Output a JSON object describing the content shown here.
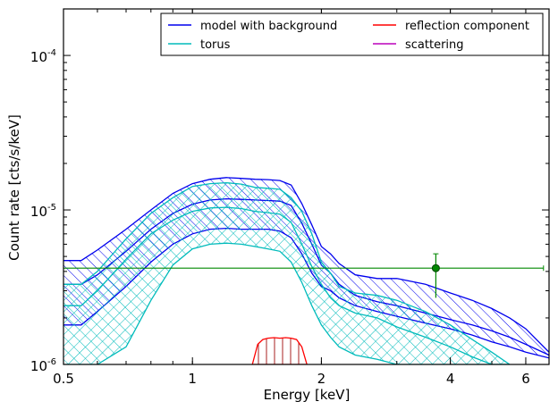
{
  "chart_data": {
    "type": "line",
    "xlabel": "Energy [keV]",
    "ylabel": "Count rate [cts/s/keV]",
    "xscale": "log",
    "yscale": "log",
    "xlim": [
      0.5,
      6.8
    ],
    "ylim": [
      1e-06,
      0.0002
    ],
    "x_ticks": [
      {
        "value": 0.5,
        "label": "0.5"
      },
      {
        "value": 1,
        "label": "1"
      },
      {
        "value": 2,
        "label": "2"
      },
      {
        "value": 4,
        "label": "4"
      },
      {
        "value": 6,
        "label": "6"
      }
    ],
    "y_ticks": [
      {
        "value": 1e-06,
        "base": "10",
        "exp": "-6"
      },
      {
        "value": 1e-05,
        "base": "10",
        "exp": "-5"
      },
      {
        "value": 0.0001,
        "base": "10",
        "exp": "-4"
      }
    ],
    "legend": {
      "placement": "top-right",
      "columns": 2
    },
    "series": [
      {
        "name": "model with background",
        "color": "#0000ee",
        "style": "band-diagonal-hatch",
        "x": [
          0.5,
          0.55,
          0.6,
          0.7,
          0.8,
          0.9,
          1.0,
          1.1,
          1.2,
          1.3,
          1.4,
          1.5,
          1.6,
          1.7,
          1.8,
          1.9,
          2.0,
          2.1,
          2.2,
          2.4,
          2.7,
          3.0,
          3.5,
          4.0,
          4.5,
          5.0,
          5.5,
          6.0,
          6.8
        ],
        "upper": [
          4.7e-06,
          4.7e-06,
          5.5e-06,
          7.5e-06,
          1e-05,
          1.28e-05,
          1.48e-05,
          1.58e-05,
          1.62e-05,
          1.6e-05,
          1.58e-05,
          1.57e-05,
          1.55e-05,
          1.45e-05,
          1.1e-05,
          8e-06,
          5.8e-06,
          5.2e-06,
          4.5e-06,
          3.8e-06,
          3.6e-06,
          3.6e-06,
          3.3e-06,
          2.9e-06,
          2.6e-06,
          2.3e-06,
          2e-06,
          1.7e-06,
          1.2e-06
        ],
        "mid": [
          3.3e-06,
          3.3e-06,
          3.8e-06,
          5.4e-06,
          7.5e-06,
          9.5e-06,
          1.09e-05,
          1.16e-05,
          1.18e-05,
          1.17e-05,
          1.16e-05,
          1.15e-05,
          1.14e-05,
          1.07e-05,
          8.2e-06,
          6e-06,
          4.4e-06,
          3.9e-06,
          3.3e-06,
          2.8e-06,
          2.55e-06,
          2.4e-06,
          2.15e-06,
          1.95e-06,
          1.8e-06,
          1.65e-06,
          1.5e-06,
          1.35e-06,
          1.15e-06
        ],
        "lower": [
          1.8e-06,
          1.8e-06,
          2.2e-06,
          3.2e-06,
          4.6e-06,
          6e-06,
          7e-06,
          7.5e-06,
          7.6e-06,
          7.5e-06,
          7.5e-06,
          7.5e-06,
          7.3e-06,
          6.6e-06,
          5.2e-06,
          3.9e-06,
          3.2e-06,
          3e-06,
          2.7e-06,
          2.4e-06,
          2.2e-06,
          2.05e-06,
          1.85e-06,
          1.7e-06,
          1.55e-06,
          1.4e-06,
          1.3e-06,
          1.2e-06,
          1.1e-06
        ]
      },
      {
        "name": "torus",
        "color": "#00bbbb",
        "style": "band-cross-hatch",
        "x": [
          0.5,
          0.55,
          0.6,
          0.7,
          0.8,
          0.9,
          1.0,
          1.1,
          1.2,
          1.3,
          1.4,
          1.5,
          1.6,
          1.7,
          1.8,
          1.9,
          2.0,
          2.1,
          2.2,
          2.4,
          2.7,
          3.0,
          3.5,
          4.0,
          4.5,
          5.0,
          5.5
        ],
        "upper": [
          3.3e-06,
          3.3e-06,
          4e-06,
          6.5e-06,
          9.5e-06,
          1.2e-05,
          1.42e-05,
          1.48e-05,
          1.5e-05,
          1.47e-05,
          1.4e-05,
          1.38e-05,
          1.36e-05,
          1.2e-05,
          9.8e-06,
          7e-06,
          4.6e-06,
          3.9e-06,
          3.2e-06,
          2.9e-06,
          2.8e-06,
          2.6e-06,
          2.2e-06,
          1.8e-06,
          1.45e-06,
          1.2e-06,
          1e-06
        ],
        "mid": [
          2.4e-06,
          2.4e-06,
          3e-06,
          4.8e-06,
          7e-06,
          8.6e-06,
          9.8e-06,
          1.03e-05,
          1.04e-05,
          1.02e-05,
          9.8e-06,
          9.6e-06,
          9.4e-06,
          8.3e-06,
          6e-06,
          4.3e-06,
          3.3e-06,
          2.7e-06,
          2.4e-06,
          2.15e-06,
          2e-06,
          1.75e-06,
          1.5e-06,
          1.3e-06,
          1.12e-06,
          1e-06,
          1e-06
        ],
        "lower": [
          1e-06,
          1e-06,
          1e-06,
          1.3e-06,
          2.6e-06,
          4.4e-06,
          5.6e-06,
          6e-06,
          6.1e-06,
          6e-06,
          5.8e-06,
          5.6e-06,
          5.4e-06,
          4.6e-06,
          3.4e-06,
          2.4e-06,
          1.8e-06,
          1.5e-06,
          1.3e-06,
          1.15e-06,
          1.08e-06,
          1e-06,
          1e-06,
          1e-06,
          1e-06,
          1e-06,
          1e-06
        ]
      },
      {
        "name": "reflection component",
        "color": "#ff0000",
        "style": "band-vertical-hatch",
        "x": [
          1.38,
          1.42,
          1.46,
          1.5,
          1.55,
          1.6,
          1.65,
          1.7,
          1.75,
          1.8,
          1.85
        ],
        "upper": [
          1e-06,
          1.35e-06,
          1.45e-06,
          1.48e-06,
          1.49e-06,
          1.48e-06,
          1.49e-06,
          1.48e-06,
          1.45e-06,
          1.3e-06,
          1e-06
        ],
        "lower": [
          1e-06,
          1e-06,
          1e-06,
          1e-06,
          1e-06,
          1e-06,
          1e-06,
          1e-06,
          1e-06,
          1e-06,
          1e-06
        ]
      },
      {
        "name": "scattering",
        "color": "#bb00bb",
        "style": "line",
        "x": [],
        "y": []
      }
    ],
    "data_points": [
      {
        "name": "data",
        "color": "#008800",
        "x": 3.7,
        "x_low": 0.5,
        "x_high": 6.6,
        "y": 4.2e-06,
        "y_low": 2.7e-06,
        "y_high": 5.2e-06
      }
    ]
  }
}
